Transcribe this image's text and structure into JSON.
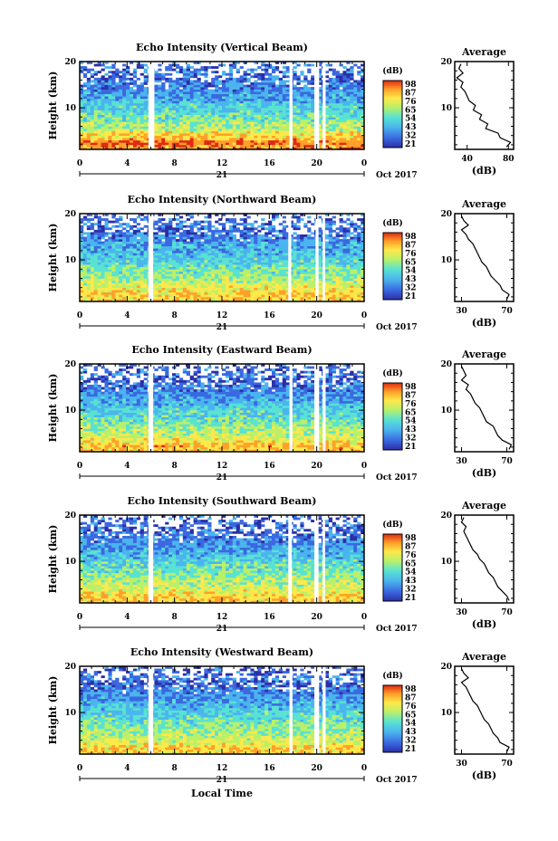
{
  "chart_data": [
    {
      "type": "heatmap",
      "title": "Echo Intensity (Vertical Beam)",
      "ylabel": "Height (km)",
      "x_ticks": [
        "0",
        "4",
        "8",
        "12",
        "16",
        "20",
        "0"
      ],
      "y_ticks": [
        "20",
        "10"
      ],
      "xlim": [
        0,
        24
      ],
      "ylim": [
        1,
        20
      ],
      "day_label": "21",
      "date_label": "Oct 2017",
      "colorbar": {
        "unit": "(dB)",
        "ticks": [
          "98",
          "87",
          "76",
          "65",
          "54",
          "43",
          "32",
          "21"
        ],
        "range": [
          21,
          98
        ]
      },
      "gaps_hours": [
        [
          5.8,
          6.3
        ],
        [
          17.7,
          17.95
        ],
        [
          19.8,
          20.2
        ],
        [
          20.5,
          20.75
        ]
      ],
      "profile": {
        "title": "Average",
        "xlabel": "(dB)",
        "x_ticks": [
          "40",
          "80"
        ],
        "xlim": [
          28,
          85
        ],
        "y_ticks": [
          "20",
          "10"
        ],
        "ylim": [
          1,
          20
        ],
        "height_km": [
          1.5,
          2.5,
          3.5,
          4.5,
          5.5,
          6.5,
          7.5,
          8.5,
          9.5,
          10.5,
          11.5,
          12.5,
          13.5,
          14.5,
          15.5,
          16.5,
          17.5,
          18.5,
          19.5
        ],
        "values_db": [
          78,
          82,
          72,
          70,
          58,
          60,
          52,
          54,
          46,
          48,
          42,
          40,
          38,
          34,
          36,
          30,
          36,
          32,
          34
        ]
      }
    },
    {
      "type": "heatmap",
      "title": "Echo Intensity (Northward Beam)",
      "ylabel": "Height (km)",
      "x_ticks": [
        "0",
        "4",
        "8",
        "12",
        "16",
        "20",
        "0"
      ],
      "y_ticks": [
        "20",
        "10"
      ],
      "xlim": [
        0,
        24
      ],
      "ylim": [
        1,
        20
      ],
      "day_label": "21",
      "date_label": "Oct 2017",
      "colorbar": {
        "unit": "(dB)",
        "ticks": [
          "98",
          "87",
          "76",
          "65",
          "54",
          "43",
          "32",
          "21"
        ],
        "range": [
          21,
          98
        ]
      },
      "gaps_hours": [
        [
          5.8,
          6.2
        ],
        [
          17.6,
          17.85
        ],
        [
          19.9,
          20.15
        ],
        [
          20.5,
          20.7
        ]
      ],
      "profile": {
        "title": "Average",
        "xlabel": "(dB)",
        "x_ticks": [
          "30",
          "70"
        ],
        "xlim": [
          24,
          76
        ],
        "y_ticks": [
          "20",
          "10"
        ],
        "ylim": [
          1,
          20
        ],
        "height_km": [
          1.5,
          2.5,
          3.5,
          4.5,
          5.5,
          6.5,
          7.5,
          8.5,
          9.5,
          10.5,
          11.5,
          12.5,
          13.5,
          14.5,
          15.5,
          16.5,
          17.5,
          18.5,
          19.5
        ],
        "values_db": [
          70,
          72,
          66,
          64,
          60,
          56,
          54,
          52,
          48,
          46,
          44,
          42,
          40,
          36,
          34,
          30,
          36,
          32,
          30
        ]
      }
    },
    {
      "type": "heatmap",
      "title": "Echo Intensity (Eastward Beam)",
      "ylabel": "Height (km)",
      "x_ticks": [
        "0",
        "4",
        "8",
        "12",
        "16",
        "20",
        "0"
      ],
      "y_ticks": [
        "20",
        "10"
      ],
      "xlim": [
        0,
        24
      ],
      "ylim": [
        1,
        20
      ],
      "day_label": "21",
      "date_label": "Oct 2017",
      "colorbar": {
        "unit": "(dB)",
        "ticks": [
          "98",
          "87",
          "76",
          "65",
          "54",
          "43",
          "32",
          "21"
        ],
        "range": [
          21,
          98
        ]
      },
      "gaps_hours": [
        [
          5.8,
          6.2
        ],
        [
          17.7,
          17.95
        ],
        [
          19.8,
          20.2
        ],
        [
          20.5,
          20.75
        ]
      ],
      "profile": {
        "title": "Average",
        "xlabel": "(dB)",
        "x_ticks": [
          "30",
          "70"
        ],
        "xlim": [
          24,
          76
        ],
        "y_ticks": [
          "20",
          "10"
        ],
        "ylim": [
          1,
          20
        ],
        "height_km": [
          1.5,
          2.5,
          3.5,
          4.5,
          5.5,
          6.5,
          7.5,
          8.5,
          9.5,
          10.5,
          11.5,
          12.5,
          13.5,
          14.5,
          15.5,
          16.5,
          17.5,
          18.5,
          19.5
        ],
        "values_db": [
          72,
          74,
          66,
          62,
          60,
          58,
          52,
          50,
          48,
          46,
          42,
          40,
          38,
          34,
          36,
          30,
          34,
          32,
          30
        ]
      }
    },
    {
      "type": "heatmap",
      "title": "Echo Intensity (Southward Beam)",
      "ylabel": "Height (km)",
      "x_ticks": [
        "0",
        "4",
        "8",
        "12",
        "16",
        "20",
        "0"
      ],
      "y_ticks": [
        "20",
        "10"
      ],
      "xlim": [
        0,
        24
      ],
      "ylim": [
        1,
        20
      ],
      "day_label": "21",
      "date_label": "Oct 2017",
      "colorbar": {
        "unit": "(dB)",
        "ticks": [
          "98",
          "87",
          "76",
          "65",
          "54",
          "43",
          "32",
          "21"
        ],
        "range": [
          21,
          98
        ]
      },
      "gaps_hours": [
        [
          5.8,
          6.2
        ],
        [
          17.6,
          17.9
        ],
        [
          19.8,
          20.15
        ],
        [
          20.5,
          20.7
        ]
      ],
      "profile": {
        "title": "Average",
        "xlabel": "(dB)",
        "x_ticks": [
          "30",
          "70"
        ],
        "xlim": [
          24,
          76
        ],
        "y_ticks": [
          "20",
          "10"
        ],
        "ylim": [
          1,
          20
        ],
        "height_km": [
          1.5,
          2.5,
          3.5,
          4.5,
          5.5,
          6.5,
          7.5,
          8.5,
          9.5,
          10.5,
          11.5,
          12.5,
          13.5,
          14.5,
          15.5,
          16.5,
          17.5,
          18.5,
          19.5
        ],
        "values_db": [
          72,
          70,
          66,
          62,
          60,
          58,
          54,
          52,
          50,
          46,
          44,
          40,
          38,
          36,
          34,
          32,
          34,
          30,
          32
        ]
      }
    },
    {
      "type": "heatmap",
      "title": "Echo Intensity (Westward Beam)",
      "ylabel": "Height (km)",
      "x_ticks": [
        "0",
        "4",
        "8",
        "12",
        "16",
        "20",
        "0"
      ],
      "y_ticks": [
        "20",
        "10"
      ],
      "xlim": [
        0,
        24
      ],
      "ylim": [
        1,
        20
      ],
      "day_label": "21",
      "date_label": "Oct 2017",
      "xlabel": "Local Time",
      "colorbar": {
        "unit": "(dB)",
        "ticks": [
          "98",
          "87",
          "76",
          "65",
          "54",
          "43",
          "32",
          "21"
        ],
        "range": [
          21,
          98
        ]
      },
      "gaps_hours": [
        [
          5.8,
          6.2
        ],
        [
          17.7,
          17.95
        ],
        [
          19.8,
          20.2
        ],
        [
          20.5,
          20.75
        ]
      ],
      "profile": {
        "title": "Average",
        "xlabel": "(dB)",
        "x_ticks": [
          "30",
          "70"
        ],
        "xlim": [
          24,
          76
        ],
        "y_ticks": [
          "20",
          "10"
        ],
        "ylim": [
          1,
          20
        ],
        "height_km": [
          1.5,
          2.5,
          3.5,
          4.5,
          5.5,
          6.5,
          7.5,
          8.5,
          9.5,
          10.5,
          11.5,
          12.5,
          13.5,
          14.5,
          15.5,
          16.5,
          17.5,
          18.5,
          19.5
        ],
        "values_db": [
          70,
          72,
          64,
          62,
          58,
          56,
          54,
          50,
          48,
          46,
          44,
          40,
          38,
          36,
          34,
          30,
          36,
          32,
          30
        ]
      }
    }
  ],
  "colors": {
    "scale": [
      "#2b2fa6",
      "#3a68e0",
      "#4ab4ee",
      "#58e2d2",
      "#b9f06a",
      "#ffe84a",
      "#ffa028",
      "#e02a14"
    ]
  }
}
